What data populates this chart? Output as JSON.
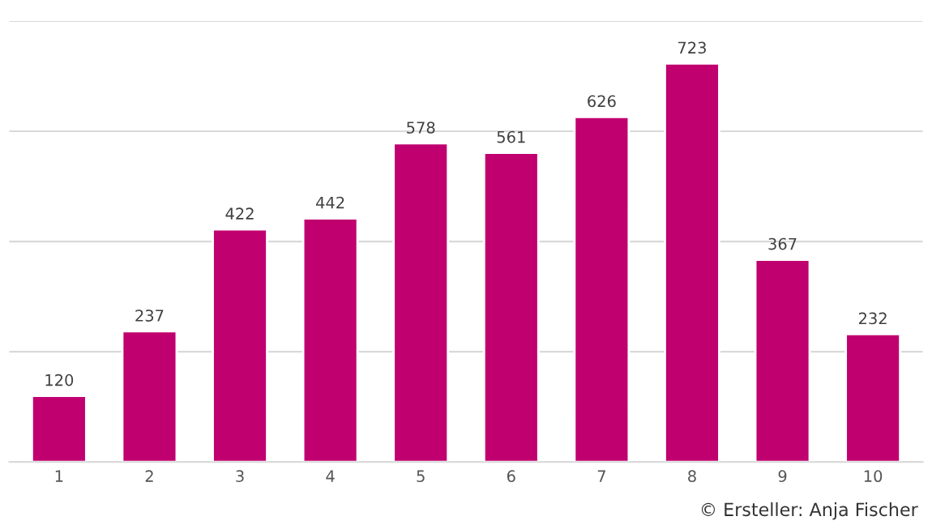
{
  "chart_data": {
    "type": "bar",
    "categories": [
      "1",
      "2",
      "3",
      "4",
      "5",
      "6",
      "7",
      "8",
      "9",
      "10"
    ],
    "values": [
      120,
      237,
      422,
      442,
      578,
      561,
      626,
      723,
      367,
      232
    ],
    "color": "#c0006f",
    "ylim": [
      0,
      800
    ],
    "yticks": [
      {
        "value": 0,
        "label": null
      },
      {
        "value": 200,
        "label": null
      },
      {
        "value": 400,
        "label": null
      },
      {
        "value": 600,
        "label": null
      },
      {
        "value": 800,
        "label": null
      }
    ],
    "grid": "y",
    "data_labels": true,
    "annotations": [
      "© Ersteller: Anja Fischer"
    ]
  }
}
